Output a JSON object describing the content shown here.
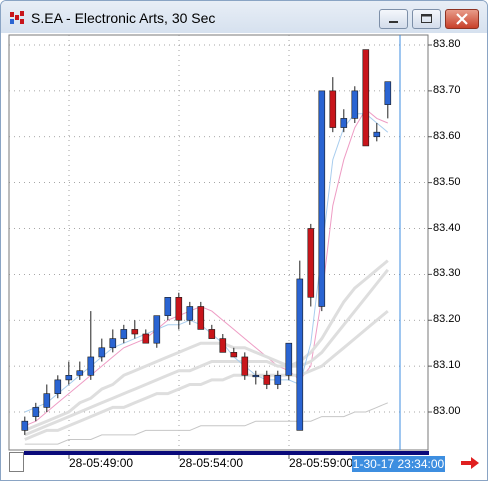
{
  "window": {
    "title": "S.EA - Electronic Arts, 30 Sec"
  },
  "crosshair_time": "1-30-17 23:34:00",
  "colors": {
    "up_candle": "#2a64d2",
    "down_candle": "#c8151b",
    "ma_fast": "#a8cdee",
    "ma_medium": "#ee9cc4",
    "ma_slow": "#dedede",
    "ma_long": "#c6c6c6",
    "cursor_line": "#3d8ee0"
  },
  "chart_data": {
    "type": "candlestick",
    "y_axis": {
      "ticks": [
        "83.80",
        "83.70",
        "83.60",
        "83.50",
        "83.40",
        "83.30",
        "83.20",
        "83.10",
        "83.00"
      ],
      "range": [
        82.96,
        83.81
      ]
    },
    "x_axis": {
      "ticks": [
        "28-05:49:00",
        "28-05:54:00",
        "28-05:59:00"
      ]
    },
    "candles": [
      {
        "o": 82.96,
        "h": 82.99,
        "l": 82.95,
        "c": 82.98
      },
      {
        "o": 82.99,
        "h": 83.02,
        "l": 82.98,
        "c": 83.01
      },
      {
        "o": 83.01,
        "h": 83.06,
        "l": 83.0,
        "c": 83.04
      },
      {
        "o": 83.04,
        "h": 83.08,
        "l": 83.03,
        "c": 83.07
      },
      {
        "o": 83.07,
        "h": 83.11,
        "l": 83.06,
        "c": 83.08
      },
      {
        "o": 83.08,
        "h": 83.11,
        "l": 83.07,
        "c": 83.09
      },
      {
        "o": 83.08,
        "h": 83.22,
        "l": 83.07,
        "c": 83.12
      },
      {
        "o": 83.12,
        "h": 83.16,
        "l": 83.11,
        "c": 83.14
      },
      {
        "o": 83.14,
        "h": 83.18,
        "l": 83.13,
        "c": 83.16
      },
      {
        "o": 83.16,
        "h": 83.19,
        "l": 83.15,
        "c": 83.18
      },
      {
        "o": 83.18,
        "h": 83.2,
        "l": 83.16,
        "c": 83.17
      },
      {
        "o": 83.17,
        "h": 83.18,
        "l": 83.15,
        "c": 83.15
      },
      {
        "o": 83.15,
        "h": 83.21,
        "l": 83.14,
        "c": 83.21
      },
      {
        "o": 83.21,
        "h": 83.25,
        "l": 83.2,
        "c": 83.25
      },
      {
        "o": 83.25,
        "h": 83.26,
        "l": 83.18,
        "c": 83.2
      },
      {
        "o": 83.2,
        "h": 83.24,
        "l": 83.19,
        "c": 83.23
      },
      {
        "o": 83.23,
        "h": 83.24,
        "l": 83.18,
        "c": 83.18
      },
      {
        "o": 83.18,
        "h": 83.19,
        "l": 83.16,
        "c": 83.16
      },
      {
        "o": 83.16,
        "h": 83.17,
        "l": 83.13,
        "c": 83.13
      },
      {
        "o": 83.13,
        "h": 83.14,
        "l": 83.12,
        "c": 83.12
      },
      {
        "o": 83.12,
        "h": 83.13,
        "l": 83.07,
        "c": 83.08
      },
      {
        "o": 83.08,
        "h": 83.09,
        "l": 83.06,
        "c": 83.08
      },
      {
        "o": 83.08,
        "h": 83.09,
        "l": 83.05,
        "c": 83.06
      },
      {
        "o": 83.06,
        "h": 83.09,
        "l": 83.05,
        "c": 83.08
      },
      {
        "o": 83.08,
        "h": 83.15,
        "l": 83.07,
        "c": 83.15
      },
      {
        "o": 82.96,
        "h": 83.33,
        "l": 82.96,
        "c": 83.29
      },
      {
        "o": 83.4,
        "h": 83.41,
        "l": 83.23,
        "c": 83.25
      },
      {
        "o": 83.23,
        "h": 83.7,
        "l": 83.22,
        "c": 83.7
      },
      {
        "o": 83.7,
        "h": 83.73,
        "l": 83.61,
        "c": 83.62
      },
      {
        "o": 83.62,
        "h": 83.66,
        "l": 83.61,
        "c": 83.64
      },
      {
        "o": 83.64,
        "h": 83.71,
        "l": 83.63,
        "c": 83.7
      },
      {
        "o": 83.79,
        "h": 83.79,
        "l": 83.58,
        "c": 83.58
      },
      {
        "o": 83.6,
        "h": 83.63,
        "l": 83.59,
        "c": 83.61
      },
      {
        "o": 83.67,
        "h": 83.72,
        "l": 83.64,
        "c": 83.72
      }
    ],
    "series": [
      {
        "values": [
          82.97,
          82.98,
          83.0,
          83.02,
          83.04,
          83.06,
          83.08,
          83.1,
          83.12,
          83.14,
          83.15,
          83.16,
          83.18,
          83.2,
          83.21,
          83.22,
          83.23,
          83.22,
          83.2,
          83.18,
          83.16,
          83.14,
          83.12,
          83.1,
          83.09,
          83.07,
          83.1,
          83.25,
          83.45,
          83.55,
          83.62,
          83.66,
          83.64,
          83.63
        ]
      },
      {
        "values": [
          82.96,
          82.97,
          82.98,
          82.99,
          83.0,
          83.02,
          83.03,
          83.05,
          83.06,
          83.08,
          83.09,
          83.1,
          83.11,
          83.12,
          83.13,
          83.14,
          83.15,
          83.15,
          83.15,
          83.14,
          83.14,
          83.13,
          83.12,
          83.11,
          83.1,
          83.11,
          83.13,
          83.16,
          83.2,
          83.24,
          83.27,
          83.29,
          83.31,
          83.33
        ]
      },
      {
        "values": [
          82.95,
          82.96,
          82.97,
          82.98,
          82.99,
          83.0,
          83.01,
          83.02,
          83.03,
          83.04,
          83.05,
          83.06,
          83.07,
          83.08,
          83.09,
          83.09,
          83.1,
          83.11,
          83.11,
          83.11,
          83.11,
          83.11,
          83.11,
          83.1,
          83.1,
          83.1,
          83.11,
          83.13,
          83.16,
          83.19,
          83.22,
          83.25,
          83.28,
          83.31
        ]
      },
      {
        "values": [
          82.94,
          82.95,
          82.96,
          82.96,
          82.97,
          82.98,
          82.99,
          83.0,
          83.01,
          83.01,
          83.02,
          83.03,
          83.04,
          83.04,
          83.05,
          83.06,
          83.06,
          83.07,
          83.07,
          83.08,
          83.08,
          83.08,
          83.08,
          83.08,
          83.08,
          83.08,
          83.09,
          83.1,
          83.12,
          83.14,
          83.16,
          83.18,
          83.2,
          83.22
        ]
      },
      {
        "values": [
          82.93,
          82.93,
          82.93,
          82.93,
          82.94,
          82.94,
          82.94,
          82.95,
          82.95,
          82.95,
          82.95,
          82.96,
          82.96,
          82.96,
          82.96,
          82.96,
          82.97,
          82.97,
          82.97,
          82.97,
          82.97,
          82.98,
          82.98,
          82.98,
          82.98,
          82.98,
          82.98,
          82.99,
          82.99,
          82.99,
          83.0,
          83.0,
          83.01,
          83.02
        ]
      },
      {
        "values": [
          83.0,
          83.01,
          83.02,
          83.04,
          83.06,
          83.08,
          83.1,
          83.12,
          83.14,
          83.15,
          83.16,
          83.17,
          83.18,
          83.19,
          83.19,
          83.2,
          83.19,
          83.17,
          83.15,
          83.12,
          83.1,
          83.08,
          83.07,
          83.07,
          83.07,
          83.06,
          83.15,
          83.35,
          83.55,
          83.62,
          83.65,
          83.65,
          83.63,
          83.61
        ]
      }
    ],
    "grid": true
  }
}
